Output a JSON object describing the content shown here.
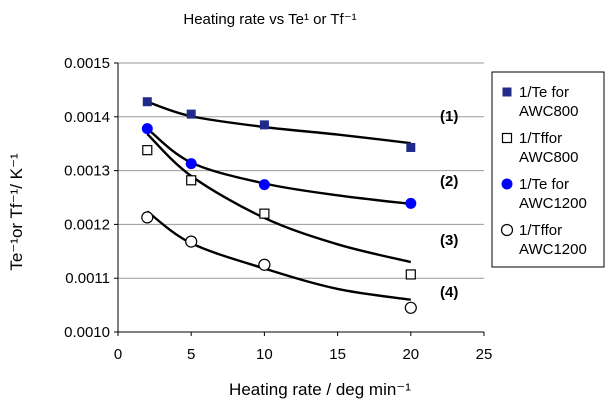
{
  "chart_data": {
    "type": "scatter",
    "title": "Heating rate vs Te¹ or Tf⁻¹",
    "xlabel": "Heating rate / deg min⁻¹",
    "ylabel": "Te⁻¹or Tf⁻¹/ K⁻¹",
    "xlim": [
      0,
      25
    ],
    "ylim": [
      0.001,
      0.0015
    ],
    "x_ticks": [
      "0",
      "5",
      "10",
      "15",
      "20",
      "25"
    ],
    "y_ticks": [
      "0.0010",
      "0.0011",
      "0.0012",
      "0.0013",
      "0.0014",
      "0.0015"
    ],
    "grid": "horizontal",
    "legend_position": "right",
    "series": [
      {
        "name": "1/Te for AWC800",
        "legend_lines": [
          "1/Te for",
          "AWC800"
        ],
        "marker": "filled-square",
        "color": "#1f2a8a",
        "x": [
          2,
          5,
          10,
          20
        ],
        "y": [
          0.001428,
          0.001405,
          0.001385,
          0.001343
        ],
        "fit_label": "(1)",
        "fit": [
          [
            2,
            0.001428
          ],
          [
            5,
            0.001401
          ],
          [
            10,
            0.001381
          ],
          [
            15,
            0.001367
          ],
          [
            20,
            0.001351
          ]
        ]
      },
      {
        "name": "1/Tffor AWC800",
        "legend_lines": [
          "1/Tffor",
          "AWC800"
        ],
        "marker": "open-square",
        "color": "#000000",
        "x": [
          2,
          5,
          10,
          20
        ],
        "y": [
          0.001338,
          0.001282,
          0.00122,
          0.001107
        ],
        "fit_label": "(3)",
        "fit": [
          [
            2,
            0.001368
          ],
          [
            5,
            0.00129
          ],
          [
            10,
            0.001212
          ],
          [
            15,
            0.001163
          ],
          [
            20,
            0.00113
          ]
        ]
      },
      {
        "name": "1/Te for AWC1200",
        "legend_lines": [
          "1/Te for",
          "AWC1200"
        ],
        "marker": "filled-circle",
        "color": "#0000ff",
        "x": [
          2,
          5,
          10,
          20
        ],
        "y": [
          0.001378,
          0.001313,
          0.001274,
          0.001239
        ],
        "fit_label": "(2)",
        "fit": [
          [
            2,
            0.001378
          ],
          [
            5,
            0.001315
          ],
          [
            10,
            0.001276
          ],
          [
            15,
            0.001254
          ],
          [
            20,
            0.001238
          ]
        ]
      },
      {
        "name": "1/Tffor AWC1200",
        "legend_lines": [
          "1/Tffor",
          "AWC1200"
        ],
        "marker": "open-circle",
        "color": "#000000",
        "x": [
          2,
          5,
          10,
          20
        ],
        "y": [
          0.001213,
          0.001168,
          0.001125,
          0.001045
        ],
        "fit_label": "(4)",
        "fit": [
          [
            2,
            0.001224
          ],
          [
            5,
            0.001165
          ],
          [
            10,
            0.001118
          ],
          [
            15,
            0.00108
          ],
          [
            20,
            0.00106
          ]
        ]
      }
    ]
  }
}
